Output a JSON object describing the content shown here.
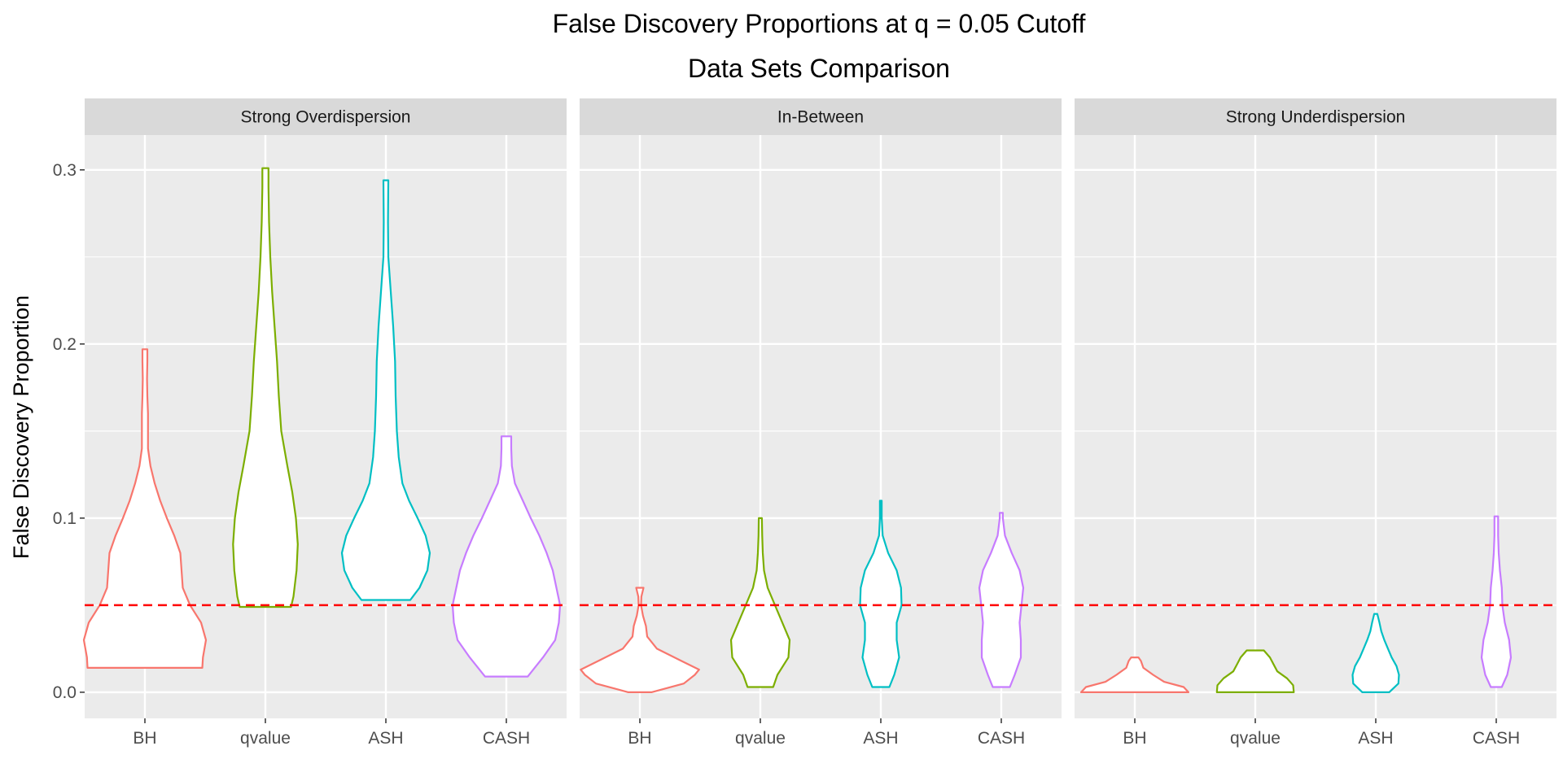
{
  "chart_data": {
    "type": "violin",
    "title": "False Discovery Proportions at q = 0.05 Cutoff",
    "subtitle": "Data Sets Comparison",
    "xlabel": "",
    "ylabel": "False Discovery Proportion",
    "ylim": [
      -0.015,
      0.32
    ],
    "y_ticks": [
      0.0,
      0.1,
      0.2,
      0.3
    ],
    "y_tick_labels": [
      "0.0",
      "0.1",
      "0.2",
      "0.3"
    ],
    "categories": [
      "BH",
      "qvalue",
      "ASH",
      "CASH"
    ],
    "colors": {
      "BH": "#F8766D",
      "qvalue": "#7CAE00",
      "ASH": "#00BFC4",
      "CASH": "#C77CFF"
    },
    "reference_line": {
      "y": 0.05,
      "color": "#FF0000",
      "style": "dashed"
    },
    "grid": true,
    "legend": "none",
    "panels": [
      {
        "strip": "Strong Overdispersion",
        "violins": [
          {
            "category": "BH",
            "profile": [
              [
                0.014,
                0.94
              ],
              [
                0.02,
                0.95
              ],
              [
                0.03,
                1.0
              ],
              [
                0.04,
                0.92
              ],
              [
                0.05,
                0.74
              ],
              [
                0.06,
                0.62
              ],
              [
                0.07,
                0.6
              ],
              [
                0.08,
                0.58
              ],
              [
                0.09,
                0.48
              ],
              [
                0.1,
                0.36
              ],
              [
                0.11,
                0.25
              ],
              [
                0.12,
                0.16
              ],
              [
                0.13,
                0.09
              ],
              [
                0.14,
                0.05
              ],
              [
                0.15,
                0.05
              ],
              [
                0.16,
                0.05
              ],
              [
                0.17,
                0.04
              ],
              [
                0.18,
                0.035
              ],
              [
                0.19,
                0.04
              ],
              [
                0.197,
                0.04
              ]
            ]
          },
          {
            "category": "qvalue",
            "profile": [
              [
                0.049,
                0.42
              ],
              [
                0.055,
                0.46
              ],
              [
                0.07,
                0.51
              ],
              [
                0.085,
                0.53
              ],
              [
                0.1,
                0.5
              ],
              [
                0.115,
                0.44
              ],
              [
                0.13,
                0.36
              ],
              [
                0.15,
                0.26
              ],
              [
                0.17,
                0.22
              ],
              [
                0.19,
                0.19
              ],
              [
                0.21,
                0.15
              ],
              [
                0.23,
                0.11
              ],
              [
                0.25,
                0.08
              ],
              [
                0.27,
                0.06
              ],
              [
                0.29,
                0.05
              ],
              [
                0.301,
                0.05
              ]
            ]
          },
          {
            "category": "ASH",
            "profile": [
              [
                0.053,
                0.4
              ],
              [
                0.06,
                0.55
              ],
              [
                0.07,
                0.68
              ],
              [
                0.08,
                0.72
              ],
              [
                0.09,
                0.65
              ],
              [
                0.1,
                0.52
              ],
              [
                0.11,
                0.38
              ],
              [
                0.12,
                0.27
              ],
              [
                0.135,
                0.21
              ],
              [
                0.15,
                0.18
              ],
              [
                0.17,
                0.16
              ],
              [
                0.19,
                0.15
              ],
              [
                0.21,
                0.12
              ],
              [
                0.23,
                0.08
              ],
              [
                0.25,
                0.04
              ],
              [
                0.27,
                0.035
              ],
              [
                0.294,
                0.04
              ]
            ]
          },
          {
            "category": "CASH",
            "profile": [
              [
                0.009,
                0.35
              ],
              [
                0.02,
                0.6
              ],
              [
                0.03,
                0.8
              ],
              [
                0.04,
                0.86
              ],
              [
                0.05,
                0.88
              ],
              [
                0.06,
                0.82
              ],
              [
                0.07,
                0.76
              ],
              [
                0.08,
                0.66
              ],
              [
                0.09,
                0.54
              ],
              [
                0.1,
                0.4
              ],
              [
                0.11,
                0.27
              ],
              [
                0.12,
                0.14
              ],
              [
                0.13,
                0.09
              ],
              [
                0.14,
                0.08
              ],
              [
                0.147,
                0.08
              ]
            ]
          }
        ]
      },
      {
        "strip": "In-Between",
        "violins": [
          {
            "category": "BH",
            "profile": [
              [
                0.0,
                0.19
              ],
              [
                0.005,
                0.72
              ],
              [
                0.01,
                0.9
              ],
              [
                0.013,
                0.97
              ],
              [
                0.018,
                0.68
              ],
              [
                0.025,
                0.28
              ],
              [
                0.032,
                0.12
              ],
              [
                0.038,
                0.1
              ],
              [
                0.044,
                0.05
              ],
              [
                0.05,
                0.02
              ],
              [
                0.055,
                0.025
              ],
              [
                0.06,
                0.06
              ]
            ]
          },
          {
            "category": "qvalue",
            "profile": [
              [
                0.003,
                0.21
              ],
              [
                0.01,
                0.28
              ],
              [
                0.02,
                0.46
              ],
              [
                0.03,
                0.48
              ],
              [
                0.04,
                0.36
              ],
              [
                0.05,
                0.24
              ],
              [
                0.06,
                0.12
              ],
              [
                0.07,
                0.06
              ],
              [
                0.08,
                0.04
              ],
              [
                0.09,
                0.03
              ],
              [
                0.1,
                0.025
              ]
            ]
          },
          {
            "category": "ASH",
            "profile": [
              [
                0.003,
                0.14
              ],
              [
                0.01,
                0.22
              ],
              [
                0.02,
                0.3
              ],
              [
                0.03,
                0.26
              ],
              [
                0.04,
                0.26
              ],
              [
                0.05,
                0.34
              ],
              [
                0.06,
                0.33
              ],
              [
                0.07,
                0.26
              ],
              [
                0.08,
                0.12
              ],
              [
                0.09,
                0.03
              ],
              [
                0.1,
                0.015
              ],
              [
                0.11,
                0.015
              ]
            ]
          },
          {
            "category": "CASH",
            "profile": [
              [
                0.003,
                0.14
              ],
              [
                0.01,
                0.22
              ],
              [
                0.02,
                0.32
              ],
              [
                0.03,
                0.32
              ],
              [
                0.04,
                0.3
              ],
              [
                0.05,
                0.33
              ],
              [
                0.06,
                0.36
              ],
              [
                0.07,
                0.3
              ],
              [
                0.08,
                0.17
              ],
              [
                0.09,
                0.06
              ],
              [
                0.1,
                0.025
              ],
              [
                0.103,
                0.025
              ]
            ]
          }
        ]
      },
      {
        "strip": "Strong Underdispersion",
        "violins": [
          {
            "category": "BH",
            "profile": [
              [
                0.0,
                0.88
              ],
              [
                0.003,
                0.8
              ],
              [
                0.006,
                0.48
              ],
              [
                0.01,
                0.3
              ],
              [
                0.014,
                0.14
              ],
              [
                0.018,
                0.1
              ],
              [
                0.02,
                0.06
              ]
            ]
          },
          {
            "category": "qvalue",
            "profile": [
              [
                0.0,
                0.63
              ],
              [
                0.004,
                0.62
              ],
              [
                0.008,
                0.52
              ],
              [
                0.012,
                0.36
              ],
              [
                0.016,
                0.3
              ],
              [
                0.02,
                0.24
              ],
              [
                0.024,
                0.14
              ]
            ]
          },
          {
            "category": "ASH",
            "profile": [
              [
                0.0,
                0.22
              ],
              [
                0.005,
                0.37
              ],
              [
                0.01,
                0.38
              ],
              [
                0.015,
                0.34
              ],
              [
                0.02,
                0.26
              ],
              [
                0.025,
                0.2
              ],
              [
                0.03,
                0.14
              ],
              [
                0.035,
                0.09
              ],
              [
                0.04,
                0.06
              ],
              [
                0.045,
                0.025
              ]
            ]
          },
          {
            "category": "CASH",
            "profile": [
              [
                0.003,
                0.09
              ],
              [
                0.01,
                0.18
              ],
              [
                0.02,
                0.24
              ],
              [
                0.03,
                0.21
              ],
              [
                0.04,
                0.14
              ],
              [
                0.05,
                0.1
              ],
              [
                0.06,
                0.09
              ],
              [
                0.07,
                0.06
              ],
              [
                0.08,
                0.04
              ],
              [
                0.09,
                0.03
              ],
              [
                0.101,
                0.03
              ]
            ]
          }
        ]
      }
    ]
  }
}
